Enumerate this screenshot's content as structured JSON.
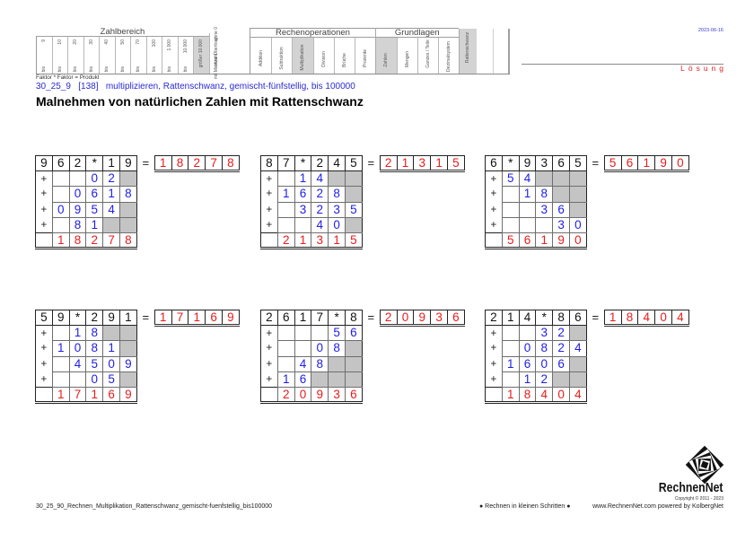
{
  "header": {
    "zahlbereich": {
      "title": "Zahlbereich",
      "columns": [
        {
          "prefix": "bis",
          "value": "9"
        },
        {
          "prefix": "bis",
          "value": "10"
        },
        {
          "prefix": "bis",
          "value": "20"
        },
        {
          "prefix": "bis",
          "value": "30"
        },
        {
          "prefix": "bis",
          "value": "40"
        },
        {
          "prefix": "bis",
          "value": "50"
        },
        {
          "prefix": "bis",
          "value": "70"
        },
        {
          "prefix": "bis",
          "value": "100"
        },
        {
          "prefix": "bis",
          "value": "1.000"
        },
        {
          "prefix": "bis",
          "value": "10.000"
        },
        {
          "value": "größer 10.000",
          "highlighted": true
        }
      ]
    },
    "options": [
      "ohne 0",
      "ohne Übertrag",
      "mit Merkzahl"
    ],
    "rechenoperationen": {
      "title": "Rechenoperationen",
      "columns": [
        "Addition",
        "Subtraktion",
        "Multiplikation",
        "Division",
        "Brüche",
        "Prozente"
      ],
      "highlighted": "Multiplikation"
    },
    "grundlagen": {
      "title": "Grundlagen",
      "columns": [
        "Zahlen",
        "Mengen",
        "Ganzes / Teile",
        "Dezimalsystem"
      ],
      "highlighted": "Zahlen"
    },
    "special": {
      "label": "Rattenschwanz",
      "highlighted": true
    },
    "formula_note": "Faktor * Faktor = Produkt"
  },
  "date": "2023-06-16",
  "solution_label": "Lösung",
  "subtitle": "30_25_9   [138]   multiplizieren, Rattenschwanz, gemischt-fünfstellig, bis 100000",
  "title": "Malnehmen von natürlichen Zahlen mit Rattenschwanz",
  "labels": {
    "equals": "="
  },
  "colors": {
    "factor_digits": "#111111",
    "partial_digits": "#1e1ee6",
    "result_digits": "#e81c1c",
    "shaded_cell": "#c4c4c4",
    "highlight_column": "#d3d3d3",
    "subtitle": "#2a2ad8"
  },
  "problems": [
    {
      "factors": [
        "9",
        "6",
        "2",
        "*",
        "1",
        "9"
      ],
      "partial_products": [
        [
          "+",
          "",
          "",
          "0",
          "2",
          null
        ],
        [
          "+",
          "",
          "0",
          "6",
          "1",
          "8"
        ],
        [
          "+",
          "0",
          "9",
          "5",
          "4",
          null
        ],
        [
          "+",
          "",
          "8",
          "1",
          null,
          null
        ]
      ],
      "sum": [
        "",
        "1",
        "8",
        "2",
        "7",
        "8"
      ],
      "product": [
        "1",
        "8",
        "2",
        "7",
        "8"
      ]
    },
    {
      "factors": [
        "8",
        "7",
        "*",
        "2",
        "4",
        "5"
      ],
      "partial_products": [
        [
          "+",
          "",
          "1",
          "4",
          null,
          null
        ],
        [
          "+",
          "1",
          "6",
          "2",
          "8",
          null
        ],
        [
          "+",
          "",
          "3",
          "2",
          "3",
          "5"
        ],
        [
          "+",
          "",
          "",
          "4",
          "0",
          null
        ]
      ],
      "sum": [
        "",
        "2",
        "1",
        "3",
        "1",
        "5"
      ],
      "product": [
        "2",
        "1",
        "3",
        "1",
        "5"
      ]
    },
    {
      "factors": [
        "6",
        "*",
        "9",
        "3",
        "6",
        "5"
      ],
      "partial_products": [
        [
          "+",
          "5",
          "4",
          null,
          null,
          null
        ],
        [
          "+",
          "",
          "1",
          "8",
          null,
          null
        ],
        [
          "+",
          "",
          "",
          "3",
          "6",
          null
        ],
        [
          "+",
          "",
          "",
          "",
          "3",
          "0"
        ]
      ],
      "sum": [
        "",
        "5",
        "6",
        "1",
        "9",
        "0"
      ],
      "product": [
        "5",
        "6",
        "1",
        "9",
        "0"
      ]
    },
    {
      "factors": [
        "5",
        "9",
        "*",
        "2",
        "9",
        "1"
      ],
      "partial_products": [
        [
          "+",
          "",
          "1",
          "8",
          null,
          null
        ],
        [
          "+",
          "1",
          "0",
          "8",
          "1",
          null
        ],
        [
          "+",
          "",
          "4",
          "5",
          "0",
          "9"
        ],
        [
          "+",
          "",
          "",
          "0",
          "5",
          null
        ]
      ],
      "sum": [
        "",
        "1",
        "7",
        "1",
        "6",
        "9"
      ],
      "product": [
        "1",
        "7",
        "1",
        "6",
        "9"
      ]
    },
    {
      "factors": [
        "2",
        "6",
        "1",
        "7",
        "*",
        "8"
      ],
      "partial_products": [
        [
          "+",
          "",
          "",
          "",
          "5",
          "6"
        ],
        [
          "+",
          "",
          "",
          "0",
          "8",
          null
        ],
        [
          "+",
          "",
          "4",
          "8",
          null,
          null
        ],
        [
          "+",
          "1",
          "6",
          null,
          null,
          null
        ]
      ],
      "sum": [
        "",
        "2",
        "0",
        "9",
        "3",
        "6"
      ],
      "product": [
        "2",
        "0",
        "9",
        "3",
        "6"
      ]
    },
    {
      "factors": [
        "2",
        "1",
        "4",
        "*",
        "8",
        "6"
      ],
      "partial_products": [
        [
          "+",
          "",
          "",
          "3",
          "2",
          null
        ],
        [
          "+",
          "",
          "0",
          "8",
          "2",
          "4"
        ],
        [
          "+",
          "1",
          "6",
          "0",
          "6",
          null
        ],
        [
          "+",
          "",
          "1",
          "2",
          null,
          null
        ]
      ],
      "sum": [
        "",
        "1",
        "8",
        "4",
        "0",
        "4"
      ],
      "product": [
        "1",
        "8",
        "4",
        "0",
        "4"
      ]
    }
  ],
  "footer": {
    "file_name": "30_25_90_Rechnen_Multiplikation_Rattenschwanz_gemischt-fuenfstellig_bis100000",
    "slogan": "● Rechnen in kleinen Schritten ●",
    "website": "www.RechnenNet.com powered by KolbergNet",
    "logo": {
      "brand": "RechnenNet",
      "copyright": "Copyright © 2011 - 2023"
    }
  }
}
